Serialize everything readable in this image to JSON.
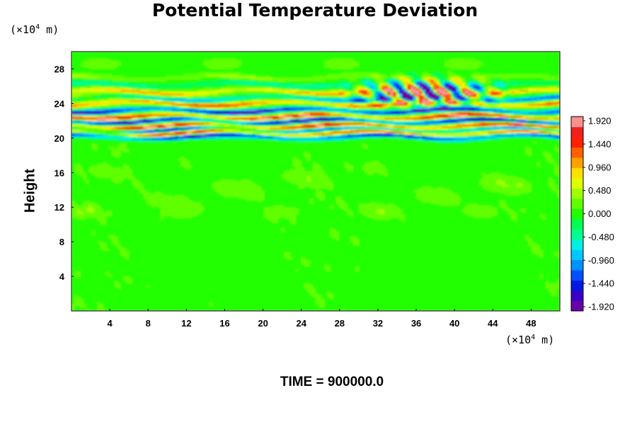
{
  "chart_data": {
    "type": "heatmap",
    "title": "Potential Temperature Deviation",
    "xlabel": "",
    "ylabel": "Height",
    "x_unit": {
      "prefix": "(×10",
      "exp": "4",
      "suffix": " m)"
    },
    "y_unit": {
      "prefix": "(×10",
      "exp": "4",
      "suffix": " m)"
    },
    "xlim": [
      0,
      51
    ],
    "ylim": [
      0,
      30
    ],
    "x_ticks": [
      "4",
      "8",
      "12",
      "16",
      "20",
      "24",
      "28",
      "32",
      "36",
      "40",
      "44",
      "48"
    ],
    "y_ticks": [
      "4",
      "8",
      "12",
      "16",
      "20",
      "24",
      "28"
    ],
    "colorbar": {
      "min": -1.92,
      "max": 1.92,
      "labels": [
        "1.920",
        "1.440",
        "0.960",
        "0.480",
        "0.000",
        "-0.480",
        "-0.960",
        "-1.440",
        "-1.920"
      ],
      "colors": [
        "#6a00a8",
        "#3a00c8",
        "#0018e0",
        "#0050ff",
        "#0090ff",
        "#00c8ff",
        "#00f0e0",
        "#00ff90",
        "#00ff50",
        "#20ff00",
        "#60ff00",
        "#a0ff00",
        "#e0ff00",
        "#ffe000",
        "#ffa000",
        "#ff6000",
        "#ff2000",
        "#f02020",
        "#ff9090"
      ]
    },
    "bands": [
      {
        "y": 20.2,
        "value": -1.92
      },
      {
        "y": 20.6,
        "value": 1.92
      },
      {
        "y": 21.0,
        "value": -1.6
      },
      {
        "y": 21.4,
        "value": 1.92
      },
      {
        "y": 22.0,
        "value": -1.92
      },
      {
        "y": 22.5,
        "value": 1.92
      },
      {
        "y": 23.2,
        "value": -1.92
      },
      {
        "y": 24.0,
        "value": 1.4
      },
      {
        "y": 24.6,
        "value": -1.2
      },
      {
        "y": 25.4,
        "value": 1.0
      },
      {
        "y": 26.2,
        "value": -0.5
      },
      {
        "y": 27.0,
        "value": 0.4
      }
    ]
  },
  "time_label": "TIME = 900000.0"
}
